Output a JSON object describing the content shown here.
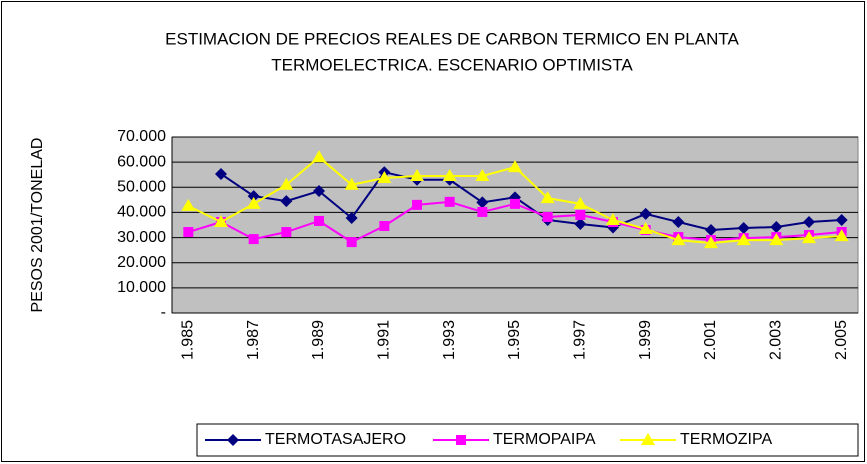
{
  "chart_data": {
    "type": "line",
    "title": [
      "ESTIMACION DE PRECIOS REALES DE CARBON TERMICO EN PLANTA",
      "TERMOELECTRICA. ESCENARIO OPTIMISTA"
    ],
    "y_label": "PESOS 2001/TONELAD",
    "categories": [
      "1.985",
      null,
      "1.987",
      null,
      "1.989",
      null,
      "1.991",
      null,
      "1.993",
      null,
      "1.995",
      null,
      "1.997",
      null,
      "1.999",
      null,
      "2.001",
      null,
      "2.003",
      null,
      "2.005"
    ],
    "series": [
      {
        "name": "TERMOTASAJERO",
        "color": "#000080",
        "marker": "diamond",
        "values": [
          null,
          55300,
          46500,
          44500,
          48500,
          37800,
          56000,
          53000,
          53000,
          44000,
          46000,
          37000,
          35400,
          34000,
          39400,
          36200,
          33000,
          33800,
          34200,
          36200,
          37000
        ]
      },
      {
        "name": "TERMOPAIPA",
        "color": "#ff00ff",
        "marker": "square",
        "values": [
          32200,
          36200,
          29400,
          32200,
          36600,
          28200,
          34600,
          43000,
          44200,
          40200,
          43400,
          38200,
          39000,
          36200,
          33000,
          30200,
          29000,
          29800,
          30200,
          31000,
          32200
        ]
      },
      {
        "name": "TERMOZIPA",
        "color": "#ffff00",
        "marker": "triangle",
        "values": [
          42600,
          36200,
          43400,
          51000,
          62000,
          51000,
          53700,
          54500,
          54500,
          54500,
          58000,
          45700,
          43400,
          37000,
          33400,
          29000,
          27800,
          29000,
          29000,
          29800,
          30600
        ]
      }
    ],
    "ylim": [
      0,
      70000
    ],
    "yticks": [
      {
        "value": 0,
        "label": "-"
      },
      {
        "value": 10000,
        "label": "10.000"
      },
      {
        "value": 20000,
        "label": "20.000"
      },
      {
        "value": 30000,
        "label": "30.000"
      },
      {
        "value": 40000,
        "label": "40.000"
      },
      {
        "value": 50000,
        "label": "50.000"
      },
      {
        "value": 60000,
        "label": "60.000"
      },
      {
        "value": 70000,
        "label": "70.000"
      }
    ],
    "grid": true,
    "plot_background": "#c0c0c0",
    "legend": "bottom"
  }
}
